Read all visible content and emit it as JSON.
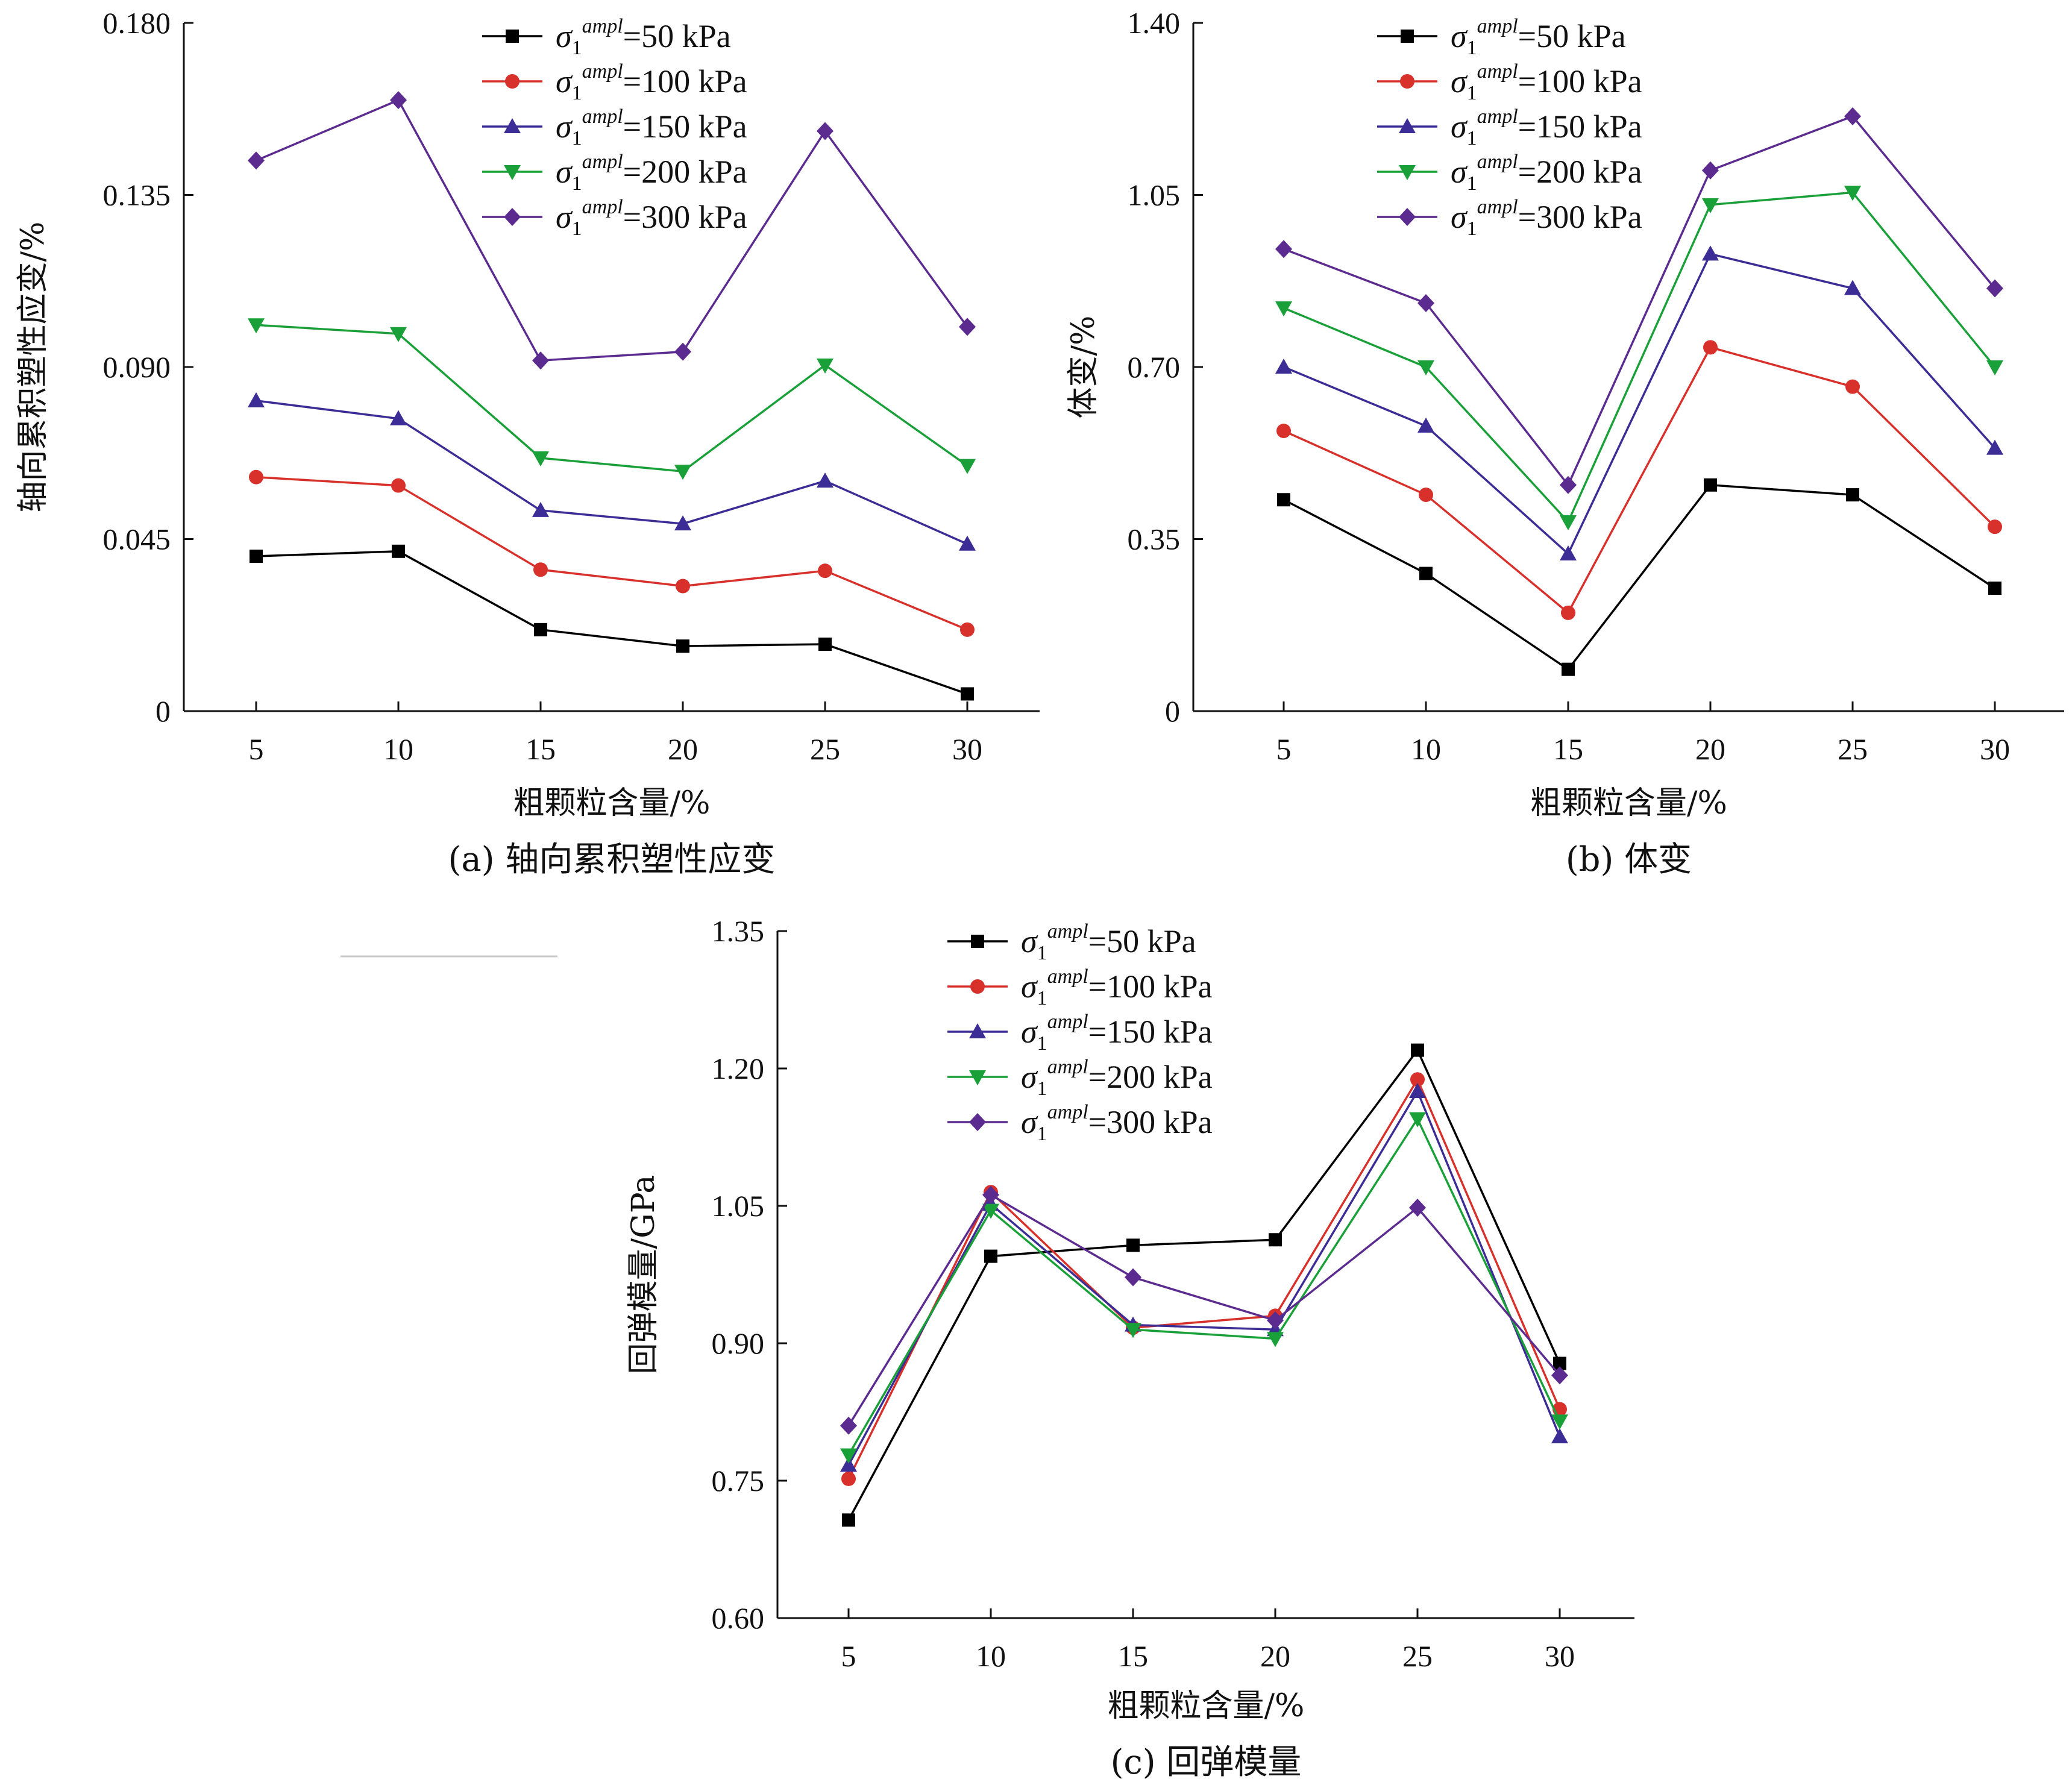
{
  "chart_data": [
    {
      "type": "line",
      "caption": "(a) 轴向累积塑性应变",
      "xlabel": "粗颗粒含量/%",
      "ylabel": "轴向累积塑性应变/%",
      "x": [
        5,
        10,
        15,
        20,
        25,
        30
      ],
      "ylim": [
        0,
        0.18
      ],
      "yticks": [
        "0",
        "0.045",
        "0.090",
        "0.135",
        "0.180"
      ],
      "series": [
        {
          "name": "σ1ampl=50 kPa",
          "sigma": "σ",
          "sub": "1",
          "sup": "ampl",
          "rest": "=50 kPa",
          "color": "#000000",
          "marker": "square",
          "values": [
            0.0405,
            0.0418,
            0.0213,
            0.017,
            0.0175,
            0.0045
          ]
        },
        {
          "name": "σ1ampl=100 kPa",
          "sigma": "σ",
          "sub": "1",
          "sup": "ampl",
          "rest": "=100 kPa",
          "color": "#d8302a",
          "marker": "circle",
          "values": [
            0.0612,
            0.059,
            0.037,
            0.0327,
            0.0367,
            0.0213
          ]
        },
        {
          "name": "σ1ampl=150 kPa",
          "sigma": "σ",
          "sub": "1",
          "sup": "ampl",
          "rest": "=150 kPa",
          "color": "#3c2c96",
          "marker": "triangle-up",
          "values": [
            0.0812,
            0.0765,
            0.0525,
            0.049,
            0.0602,
            0.0437
          ]
        },
        {
          "name": "σ1ampl=200 kPa",
          "sigma": "σ",
          "sub": "1",
          "sup": "ampl",
          "rest": "=200 kPa",
          "color": "#1aa038",
          "marker": "triangle-down",
          "values": [
            0.101,
            0.0987,
            0.0662,
            0.0627,
            0.0905,
            0.0642
          ]
        },
        {
          "name": "σ1ampl=300 kPa",
          "sigma": "σ",
          "sub": "1",
          "sup": "ampl",
          "rest": "=300 kPa",
          "color": "#5b2b8f",
          "marker": "diamond",
          "values": [
            0.144,
            0.1598,
            0.0917,
            0.094,
            0.1517,
            0.1005
          ]
        }
      ]
    },
    {
      "type": "line",
      "caption": "(b) 体变",
      "xlabel": "粗颗粒含量/%",
      "ylabel": "体变/%",
      "x": [
        5,
        10,
        15,
        20,
        25,
        30
      ],
      "ylim": [
        0,
        1.4
      ],
      "yticks": [
        "0",
        "0.35",
        "0.70",
        "1.05",
        "1.40"
      ],
      "series": [
        {
          "name": "σ1ampl=50 kPa",
          "sigma": "σ",
          "sub": "1",
          "sup": "ampl",
          "rest": "=50 kPa",
          "color": "#000000",
          "marker": "square",
          "values": [
            0.43,
            0.28,
            0.085,
            0.46,
            0.44,
            0.25
          ]
        },
        {
          "name": "σ1ampl=100 kPa",
          "sigma": "σ",
          "sub": "1",
          "sup": "ampl",
          "rest": "=100 kPa",
          "color": "#d8302a",
          "marker": "circle",
          "values": [
            0.57,
            0.44,
            0.2,
            0.74,
            0.66,
            0.375
          ]
        },
        {
          "name": "σ1ampl=150 kPa",
          "sigma": "σ",
          "sub": "1",
          "sup": "ampl",
          "rest": "=150 kPa",
          "color": "#3c2c96",
          "marker": "triangle-up",
          "values": [
            0.7,
            0.58,
            0.32,
            0.93,
            0.86,
            0.535
          ]
        },
        {
          "name": "σ1ampl=200 kPa",
          "sigma": "σ",
          "sub": "1",
          "sup": "ampl",
          "rest": "=200 kPa",
          "color": "#1aa038",
          "marker": "triangle-down",
          "values": [
            0.82,
            0.7,
            0.385,
            1.03,
            1.055,
            0.7
          ]
        },
        {
          "name": "σ1ampl=300 kPa",
          "sigma": "σ",
          "sub": "1",
          "sup": "ampl",
          "rest": "=300 kPa",
          "color": "#5b2b8f",
          "marker": "diamond",
          "values": [
            0.94,
            0.83,
            0.46,
            1.1,
            1.21,
            0.86
          ]
        }
      ]
    },
    {
      "type": "line",
      "caption": "(c) 回弹模量",
      "xlabel": "粗颗粒含量/%",
      "ylabel": "回弹模量/GPa",
      "x": [
        5,
        10,
        15,
        20,
        25,
        30
      ],
      "ylim": [
        0.6,
        1.35
      ],
      "yticks": [
        "0.60",
        "0.75",
        "0.90",
        "1.05",
        "1.20",
        "1.35"
      ],
      "series": [
        {
          "name": "σ1ampl=50 kPa",
          "sigma": "σ",
          "sub": "1",
          "sup": "ampl",
          "rest": "=50 kPa",
          "color": "#000000",
          "marker": "square",
          "values": [
            0.707,
            0.995,
            1.007,
            1.013,
            1.22,
            0.878
          ]
        },
        {
          "name": "σ1ampl=100 kPa",
          "sigma": "σ",
          "sub": "1",
          "sup": "ampl",
          "rest": "=100 kPa",
          "color": "#d8302a",
          "marker": "circle",
          "values": [
            0.752,
            1.065,
            0.917,
            0.93,
            1.188,
            0.828
          ]
        },
        {
          "name": "σ1ampl=150 kPa",
          "sigma": "σ",
          "sub": "1",
          "sup": "ampl",
          "rest": "=150 kPa",
          "color": "#3c2c96",
          "marker": "triangle-up",
          "values": [
            0.767,
            1.052,
            0.92,
            0.915,
            1.175,
            0.798
          ]
        },
        {
          "name": "σ1ampl=200 kPa",
          "sigma": "σ",
          "sub": "1",
          "sup": "ampl",
          "rest": "=200 kPa",
          "color": "#1aa038",
          "marker": "triangle-down",
          "values": [
            0.778,
            1.045,
            0.915,
            0.905,
            1.145,
            0.815
          ]
        },
        {
          "name": "σ1ampl=300 kPa",
          "sigma": "σ",
          "sub": "1",
          "sup": "ampl",
          "rest": "=300 kPa",
          "color": "#5b2b8f",
          "marker": "diamond",
          "values": [
            0.81,
            1.062,
            0.972,
            0.925,
            1.048,
            0.865
          ]
        }
      ]
    }
  ]
}
